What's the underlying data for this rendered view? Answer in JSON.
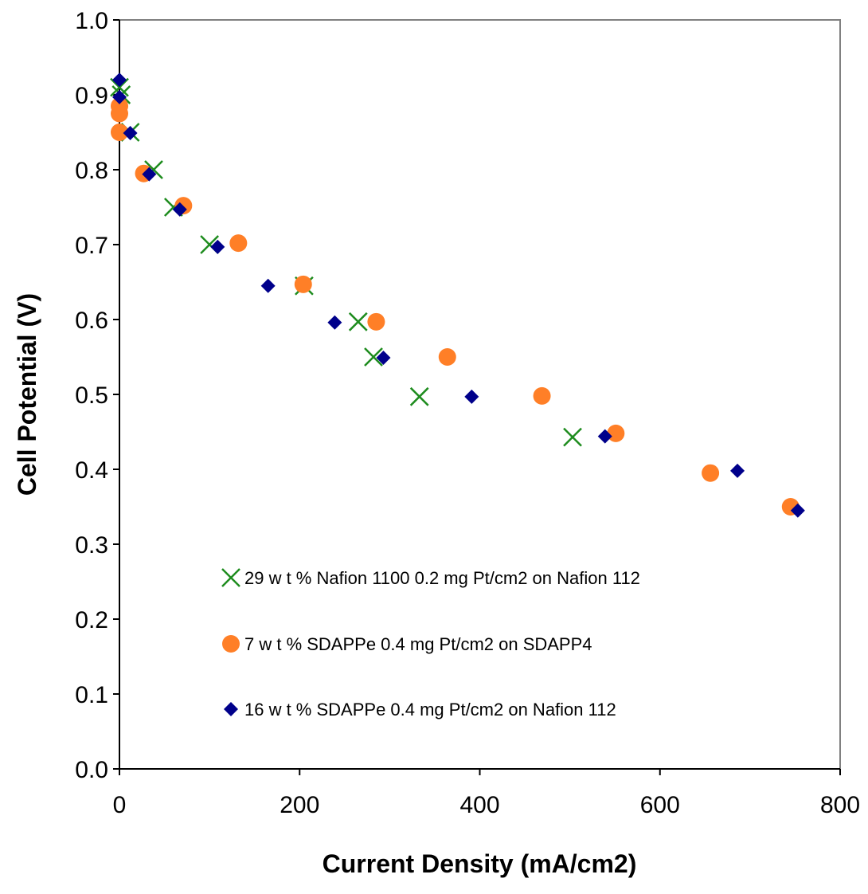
{
  "chart_data": {
    "type": "scatter",
    "xlabel": "Current Density (mA/cm2)",
    "ylabel": "Cell Potential (V)",
    "xlim": [
      0,
      800
    ],
    "ylim": [
      0.0,
      1.0
    ],
    "x_ticks": [
      "0",
      "200",
      "400",
      "600",
      "800"
    ],
    "y_ticks": [
      "0.0",
      "0.1",
      "0.2",
      "0.3",
      "0.4",
      "0.5",
      "0.6",
      "0.7",
      "0.8",
      "0.9",
      "1.0"
    ],
    "grid": false,
    "legend_position": "inside-lower-left",
    "series": [
      {
        "name": "29 w t % Nafion 1100 0.2 mg Pt/cm2 on Nafion 112",
        "marker": "x",
        "color": "#1E8C1E",
        "points": [
          [
            0,
            0.91
          ],
          [
            2,
            0.9
          ],
          [
            12,
            0.85
          ],
          [
            38,
            0.8
          ],
          [
            60,
            0.75
          ],
          [
            100,
            0.7
          ],
          [
            205,
            0.645
          ],
          [
            265,
            0.597
          ],
          [
            282,
            0.55
          ],
          [
            333,
            0.497
          ],
          [
            503,
            0.443
          ]
        ]
      },
      {
        "name": "7 w t % SDAPPe 0.4 mg Pt/cm2 on SDAPP4",
        "marker": "circle",
        "color": "#FF7F27",
        "points": [
          [
            0,
            0.885
          ],
          [
            0,
            0.875
          ],
          [
            0,
            0.85
          ],
          [
            27,
            0.795
          ],
          [
            71,
            0.752
          ],
          [
            132,
            0.702
          ],
          [
            204,
            0.647
          ],
          [
            285,
            0.597
          ],
          [
            364,
            0.55
          ],
          [
            469,
            0.498
          ],
          [
            551,
            0.448
          ],
          [
            656,
            0.395
          ],
          [
            745,
            0.35
          ]
        ]
      },
      {
        "name": "16 w t % SDAPPe 0.4 mg Pt/cm2 on Nafion 112",
        "marker": "diamond",
        "color": "#00008B",
        "points": [
          [
            0,
            0.92
          ],
          [
            0,
            0.897
          ],
          [
            12,
            0.849
          ],
          [
            33,
            0.794
          ],
          [
            67,
            0.747
          ],
          [
            109,
            0.697
          ],
          [
            165,
            0.645
          ],
          [
            239,
            0.596
          ],
          [
            293,
            0.549
          ],
          [
            391,
            0.497
          ],
          [
            539,
            0.444
          ],
          [
            686,
            0.398
          ],
          [
            753,
            0.345
          ]
        ]
      }
    ]
  }
}
